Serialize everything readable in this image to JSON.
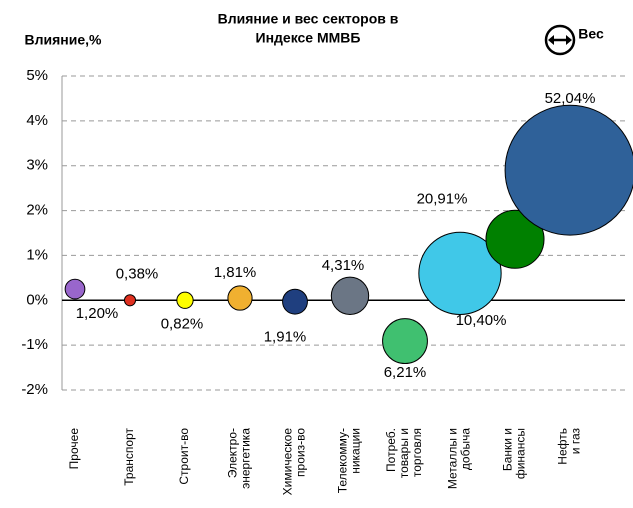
{
  "chart_data": {
    "type": "bubble",
    "title_lines": [
      "Влияние и вес секторов в",
      "Индексе ММВБ"
    ],
    "y_label": "Влияние,%",
    "size_legend": "Вес",
    "categories": [
      [
        "Прочее"
      ],
      [
        "Транспорт"
      ],
      [
        "Строит-во"
      ],
      [
        "Электро-",
        "энергетика"
      ],
      [
        "Химическое",
        "произ-во"
      ],
      [
        "Телекомму-",
        "никации"
      ],
      [
        "Потреб.",
        "товары и",
        "торговля"
      ],
      [
        "Металлы и",
        "добыча"
      ],
      [
        "Банки и",
        "финансы"
      ],
      [
        "Нефть",
        "и газ"
      ]
    ],
    "values": [
      0.25,
      0.0,
      0.0,
      0.05,
      -0.03,
      0.1,
      -0.91,
      0.6,
      1.36,
      2.9
    ],
    "sizes": [
      1.2,
      0.38,
      0.82,
      1.81,
      1.91,
      4.31,
      6.21,
      20.91,
      10.4,
      52.04
    ],
    "value_labels": [
      "1,20%",
      "0,38%",
      "0,82%",
      "1,81%",
      "1,91%",
      "4,31%",
      "6,21%",
      "20,91%",
      "10,40%",
      "52,04%"
    ],
    "colors": [
      "#9966cc",
      "#e03020",
      "#ffff00",
      "#f0b030",
      "#1f3f7f",
      "#6b7685",
      "#40c070",
      "#40c8e8",
      "#008000",
      "#2f6199"
    ],
    "ylim": [
      -2,
      5
    ],
    "yticks": [
      {
        "value": -2,
        "label": "-2%"
      },
      {
        "value": -1,
        "label": "-1%"
      },
      {
        "value": 0,
        "label": "0%"
      },
      {
        "value": 1,
        "label": "1%"
      },
      {
        "value": 2,
        "label": "2%"
      },
      {
        "value": 3,
        "label": "3%"
      },
      {
        "value": 4,
        "label": "4%"
      },
      {
        "value": 5,
        "label": "5%"
      }
    ],
    "grid": true
  }
}
